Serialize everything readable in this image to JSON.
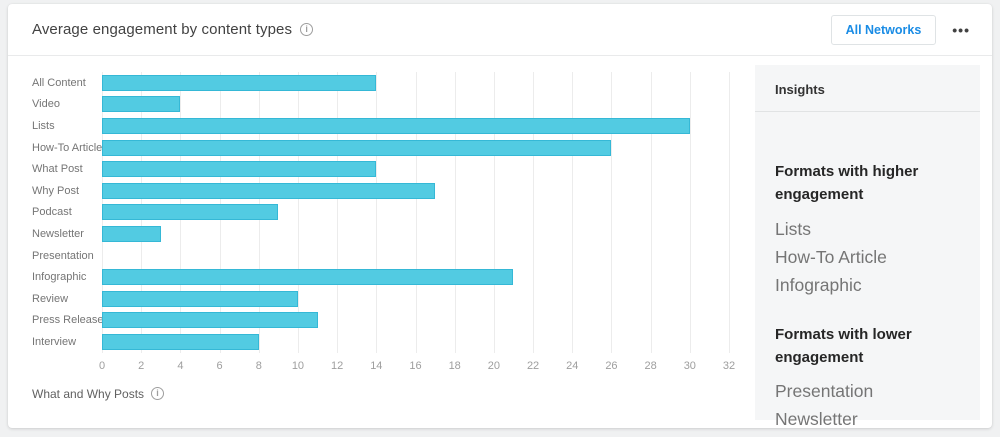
{
  "header": {
    "title": "Average engagement by content types",
    "title_info_icon": "i",
    "network_filter_label": "All Networks",
    "menu_icon": "•••"
  },
  "chart_data": {
    "type": "bar",
    "orientation": "horizontal",
    "title": "Average engagement by content types",
    "categories": [
      "All Content",
      "Video",
      "Lists",
      "How-To Article",
      "What Post",
      "Why Post",
      "Podcast",
      "Newsletter",
      "Presentation",
      "Infographic",
      "Review",
      "Press Release",
      "Interview"
    ],
    "values": [
      14,
      4,
      30,
      26,
      14,
      17,
      9,
      3,
      0,
      21,
      10,
      11,
      8
    ],
    "xlabel": "",
    "ylabel": "",
    "xlim": [
      0,
      32
    ],
    "xticks": [
      0,
      2,
      4,
      6,
      8,
      10,
      12,
      14,
      16,
      18,
      20,
      22,
      24,
      26,
      28,
      30,
      32
    ],
    "grid": true,
    "bar_color": "#52cbe2",
    "bar_border_color": "#35b8d6",
    "gridline_color": "#ececec"
  },
  "insights": {
    "title": "Insights",
    "sections": [
      {
        "heading": "Formats with higher engagement",
        "items": [
          "Lists",
          "How-To Article",
          "Infographic"
        ]
      },
      {
        "heading": "Formats with lower engagement",
        "items": [
          "Presentation",
          "Newsletter"
        ]
      }
    ]
  },
  "footnote": {
    "label": "What and Why Posts",
    "info_icon": "i"
  }
}
